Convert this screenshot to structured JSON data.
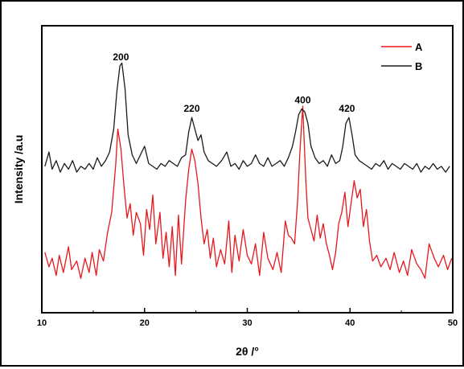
{
  "chart_data": {
    "type": "line",
    "title": "",
    "xlabel": "2θ /°",
    "ylabel": "Intensity /a.u",
    "xlim": [
      10,
      50
    ],
    "ylim": [
      0,
      100
    ],
    "x_ticks": [
      "10",
      "20",
      "30",
      "40",
      "50"
    ],
    "y_ticks_shown": false,
    "grid": false,
    "legend_position": "top-right",
    "peak_labels": [
      {
        "text": "200",
        "x": 17.7,
        "y": 88
      },
      {
        "text": "220",
        "x": 24.6,
        "y": 70
      },
      {
        "text": "400",
        "x": 35.4,
        "y": 73
      },
      {
        "text": "420",
        "x": 39.7,
        "y": 70
      }
    ],
    "series": [
      {
        "name": "A",
        "color": "#e8171d",
        "x": [
          10.3,
          10.7,
          11.0,
          11.4,
          11.7,
          12.1,
          12.6,
          12.9,
          13.4,
          13.8,
          14.2,
          14.6,
          14.9,
          15.3,
          15.6,
          16.0,
          16.4,
          16.8,
          17.2,
          17.4,
          17.7,
          18.0,
          18.3,
          18.6,
          18.9,
          19.2,
          19.6,
          19.9,
          20.2,
          20.5,
          20.8,
          21.1,
          21.5,
          21.8,
          22.1,
          22.4,
          22.7,
          23.0,
          23.3,
          23.6,
          24.0,
          24.3,
          24.6,
          24.9,
          25.2,
          25.5,
          25.8,
          26.1,
          26.4,
          26.7,
          27.0,
          27.4,
          27.8,
          28.2,
          28.5,
          28.8,
          29.2,
          29.6,
          30.0,
          30.4,
          30.8,
          31.2,
          31.6,
          32.0,
          32.5,
          32.9,
          33.3,
          33.7,
          34.0,
          34.3,
          34.6,
          34.9,
          35.1,
          35.4,
          35.7,
          35.9,
          36.2,
          36.5,
          36.8,
          37.1,
          37.4,
          37.7,
          38.0,
          38.3,
          38.6,
          38.9,
          39.2,
          39.5,
          39.8,
          40.1,
          40.4,
          40.7,
          41.0,
          41.3,
          41.6,
          41.9,
          42.2,
          42.6,
          43.0,
          43.5,
          43.9,
          44.3,
          44.8,
          45.2,
          45.6,
          46.0,
          46.5,
          46.9,
          47.3,
          47.7,
          48.2,
          48.6,
          49.1,
          49.5,
          49.9
        ],
        "y": [
          21,
          16,
          19,
          13,
          20,
          14,
          23,
          15,
          18,
          12,
          19,
          14,
          21,
          13,
          22,
          18,
          28,
          35,
          52,
          64,
          57,
          44,
          33,
          38,
          27,
          35,
          31,
          20,
          36,
          29,
          41,
          24,
          35,
          19,
          28,
          16,
          30,
          13,
          34,
          17,
          39,
          50,
          57,
          53,
          45,
          33,
          24,
          29,
          19,
          26,
          16,
          22,
          17,
          32,
          14,
          27,
          18,
          29,
          20,
          17,
          24,
          13,
          28,
          19,
          15,
          21,
          14,
          32,
          27,
          26,
          24,
          39,
          55,
          72,
          46,
          33,
          29,
          25,
          34,
          26,
          31,
          24,
          20,
          15,
          21,
          31,
          35,
          42,
          30,
          38,
          46,
          40,
          43,
          30,
          36,
          25,
          18,
          20,
          16,
          19,
          15,
          21,
          14,
          18,
          13,
          22,
          17,
          15,
          12,
          24,
          19,
          16,
          20,
          15,
          19
        ],
        "note": "noisy baseline ≈ 18, peaks at 17.7, 24.6, 35.4, 40.3"
      },
      {
        "name": "B",
        "color": "#1a1a1a",
        "x": [
          10.3,
          10.7,
          11.0,
          11.4,
          11.8,
          12.2,
          12.6,
          13.0,
          13.4,
          13.8,
          14.2,
          14.6,
          15.0,
          15.4,
          15.8,
          16.2,
          16.6,
          17.0,
          17.3,
          17.6,
          17.8,
          18.1,
          18.4,
          18.8,
          19.2,
          19.6,
          20.0,
          20.4,
          20.8,
          21.2,
          21.6,
          22.0,
          22.4,
          22.8,
          23.2,
          23.6,
          24.0,
          24.3,
          24.6,
          24.9,
          25.2,
          25.5,
          25.8,
          26.2,
          26.6,
          27.0,
          27.5,
          28.0,
          28.4,
          28.8,
          29.2,
          29.6,
          30.0,
          30.4,
          30.8,
          31.2,
          31.6,
          32.0,
          32.4,
          32.8,
          33.2,
          33.6,
          34.0,
          34.4,
          34.7,
          35.0,
          35.3,
          35.6,
          35.9,
          36.2,
          36.6,
          37.0,
          37.4,
          37.8,
          38.2,
          38.6,
          39.0,
          39.3,
          39.6,
          39.9,
          40.2,
          40.5,
          40.9,
          41.3,
          41.7,
          42.1,
          42.5,
          42.9,
          43.3,
          43.7,
          44.1,
          44.5,
          44.9,
          45.3,
          45.7,
          46.1,
          46.5,
          46.9,
          47.3,
          47.7,
          48.1,
          48.5,
          48.9,
          49.3,
          49.7
        ],
        "y": [
          51,
          56,
          50,
          53,
          49,
          52,
          50,
          53,
          49,
          51,
          50,
          52,
          50,
          54,
          51,
          53,
          56,
          64,
          77,
          86,
          87,
          78,
          62,
          55,
          52,
          55,
          58,
          52,
          51,
          50,
          52,
          51,
          53,
          52,
          51,
          54,
          55,
          63,
          68,
          64,
          60,
          62,
          56,
          53,
          52,
          51,
          53,
          56,
          51,
          52,
          50,
          53,
          51,
          52,
          55,
          52,
          51,
          54,
          51,
          52,
          53,
          51,
          54,
          58,
          63,
          69,
          71,
          70,
          66,
          58,
          54,
          52,
          53,
          51,
          55,
          52,
          53,
          58,
          66,
          68,
          62,
          55,
          53,
          52,
          51,
          50,
          52,
          51,
          53,
          50,
          52,
          51,
          50,
          52,
          51,
          50,
          52,
          49,
          51,
          50,
          52,
          50,
          51,
          49,
          51
        ],
        "note": "smoother trace, baseline ≈ 51, peaks at 17.7, 24.6, 35.4, 39.7"
      }
    ]
  }
}
